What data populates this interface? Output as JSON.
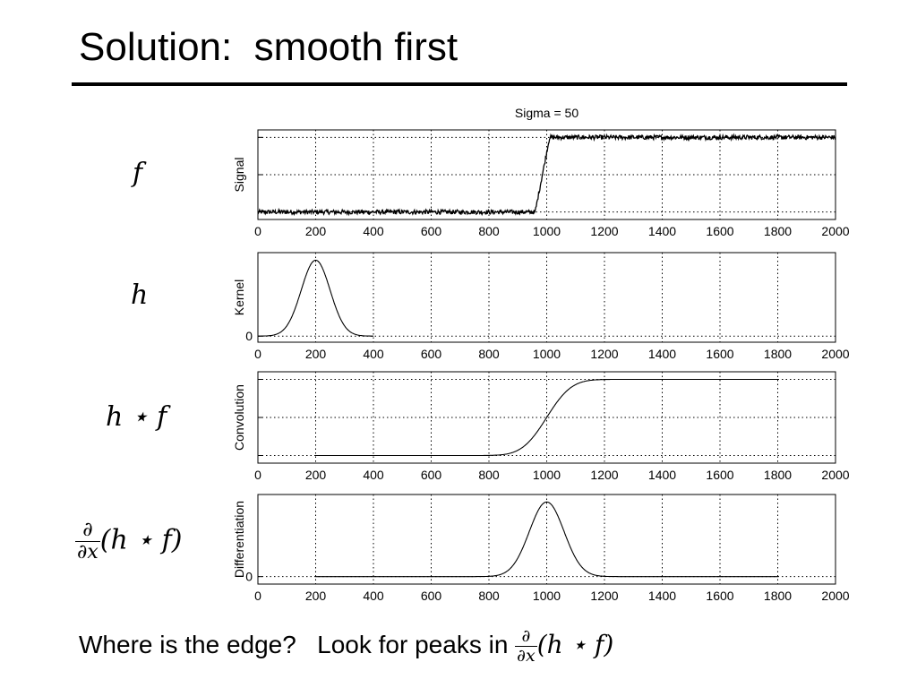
{
  "slide": {
    "title": "Solution:  smooth first",
    "footer_text": "Where is the edge?   Look for peaks in "
  },
  "math": {
    "partial": "∂",
    "dx": "∂x",
    "f": "f",
    "h": "h",
    "conv": "h ⋆ f",
    "paren_conv": "(h ⋆ f)"
  },
  "colors": {
    "line": "#000000",
    "grid": "#000000",
    "background": "#ffffff"
  },
  "chart_data": [
    {
      "type": "line",
      "title": "Sigma = 50",
      "ylabel": "Signal",
      "row_label": "f",
      "xlim": [
        0,
        2000
      ],
      "x_ticks": [
        0,
        200,
        400,
        600,
        800,
        1000,
        1200,
        1400,
        1600,
        1800,
        2000
      ],
      "ylim": [
        -0.1,
        1.1
      ],
      "y_ticks": [
        0,
        0.5,
        1
      ],
      "y_tick_labels": [
        "",
        "",
        ""
      ],
      "grid": true,
      "series": [
        {
          "description": "noisy step",
          "x": [
            0,
            960,
            1010,
            2000
          ],
          "y": [
            0,
            0,
            1,
            1
          ],
          "noise": 0.015
        }
      ]
    },
    {
      "type": "line",
      "ylabel": "Kernel",
      "row_label": "h",
      "xlim": [
        0,
        2000
      ],
      "x_ticks": [
        0,
        200,
        400,
        600,
        800,
        1000,
        1200,
        1400,
        1600,
        1800,
        2000
      ],
      "ylim": [
        -0.08,
        1.1
      ],
      "y_ticks": [
        0
      ],
      "y_tick_labels": [
        "0"
      ],
      "grid": true,
      "series": [
        {
          "description": "gaussian kernel",
          "center": 200,
          "sigma": 50,
          "x_range": [
            0,
            400
          ],
          "peak": 1
        }
      ]
    },
    {
      "type": "line",
      "ylabel": "Convolution",
      "row_label": "h ⋆ f",
      "xlim": [
        0,
        2000
      ],
      "x_ticks": [
        0,
        200,
        400,
        600,
        800,
        1000,
        1200,
        1400,
        1600,
        1800,
        2000
      ],
      "ylim": [
        -0.1,
        1.1
      ],
      "y_ticks": [
        0,
        0.5,
        1
      ],
      "y_tick_labels": [
        "",
        "",
        ""
      ],
      "grid": true,
      "series": [
        {
          "description": "smoothed step",
          "center": 1000,
          "sigma": 50,
          "x_range": [
            200,
            1800
          ]
        }
      ]
    },
    {
      "type": "line",
      "ylabel": "Differentiation",
      "row_label": "∂/∂x (h ⋆ f)",
      "xlim": [
        0,
        2000
      ],
      "x_ticks": [
        0,
        200,
        400,
        600,
        800,
        1000,
        1200,
        1400,
        1600,
        1800,
        2000
      ],
      "ylim": [
        -0.1,
        1.1
      ],
      "y_ticks": [
        0
      ],
      "y_tick_labels": [
        "0"
      ],
      "grid": true,
      "series": [
        {
          "description": "derivative peak",
          "center": 1000,
          "sigma": 50,
          "x_range": [
            200,
            1800
          ],
          "peak": 1
        }
      ]
    }
  ]
}
